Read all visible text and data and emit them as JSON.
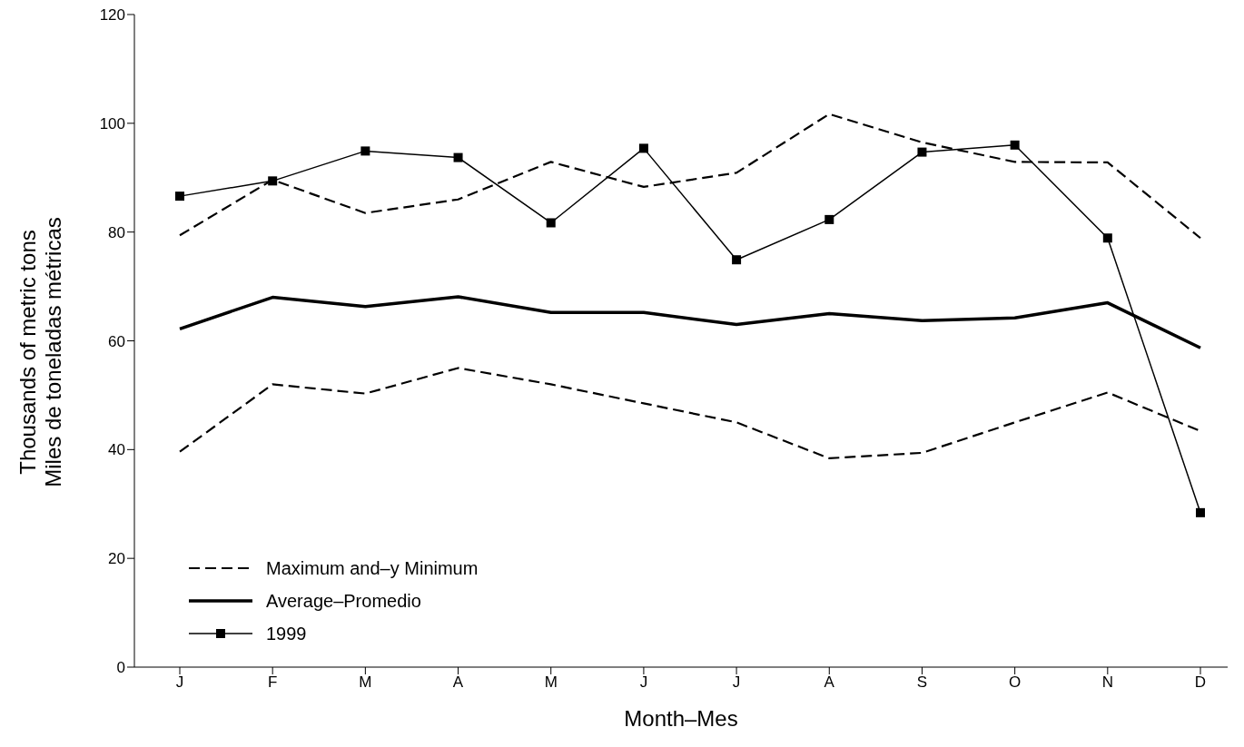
{
  "chart_data": {
    "type": "line",
    "xlabel": "Month–Mes",
    "ylabel": "Thousands of metric tons\nMiles de toneladas métricas",
    "categories": [
      "J",
      "F",
      "M",
      "A",
      "M",
      "J",
      "J",
      "A",
      "S",
      "O",
      "N",
      "D"
    ],
    "ylim": [
      0,
      120
    ],
    "yticks": [
      0,
      20,
      40,
      60,
      80,
      100,
      120
    ],
    "grid": false,
    "legend": "bottom left",
    "series": [
      {
        "name": "Maximum and–y Minimum",
        "color": "#000000",
        "line_style": "dashed",
        "marker": "none",
        "values": [
          79.4,
          89.6,
          83.5,
          86,
          92.9,
          88.3,
          90.9,
          101.7,
          96.5,
          92.9,
          92.8,
          78.9
        ]
      },
      {
        "color": "#000000",
        "line_style": "dashed",
        "marker": "none",
        "values": [
          39.6,
          52,
          50.3,
          55,
          52,
          48.5,
          45,
          38.4,
          39.4,
          45,
          50.5,
          43.4
        ]
      },
      {
        "name": "Average–Promedio",
        "color": "#000000",
        "line_style": "solid",
        "marker": "none",
        "values": [
          62.2,
          68,
          66.3,
          68.1,
          65.2,
          65.2,
          63,
          65,
          63.7,
          64.2,
          67,
          58.7
        ]
      },
      {
        "name": "1999",
        "color": "#000000",
        "line_style": "solid",
        "marker": "square",
        "values": [
          86.6,
          89.4,
          94.9,
          93.7,
          81.7,
          95.4,
          74.9,
          82.3,
          94.7,
          96,
          78.9,
          28.4
        ]
      }
    ]
  }
}
